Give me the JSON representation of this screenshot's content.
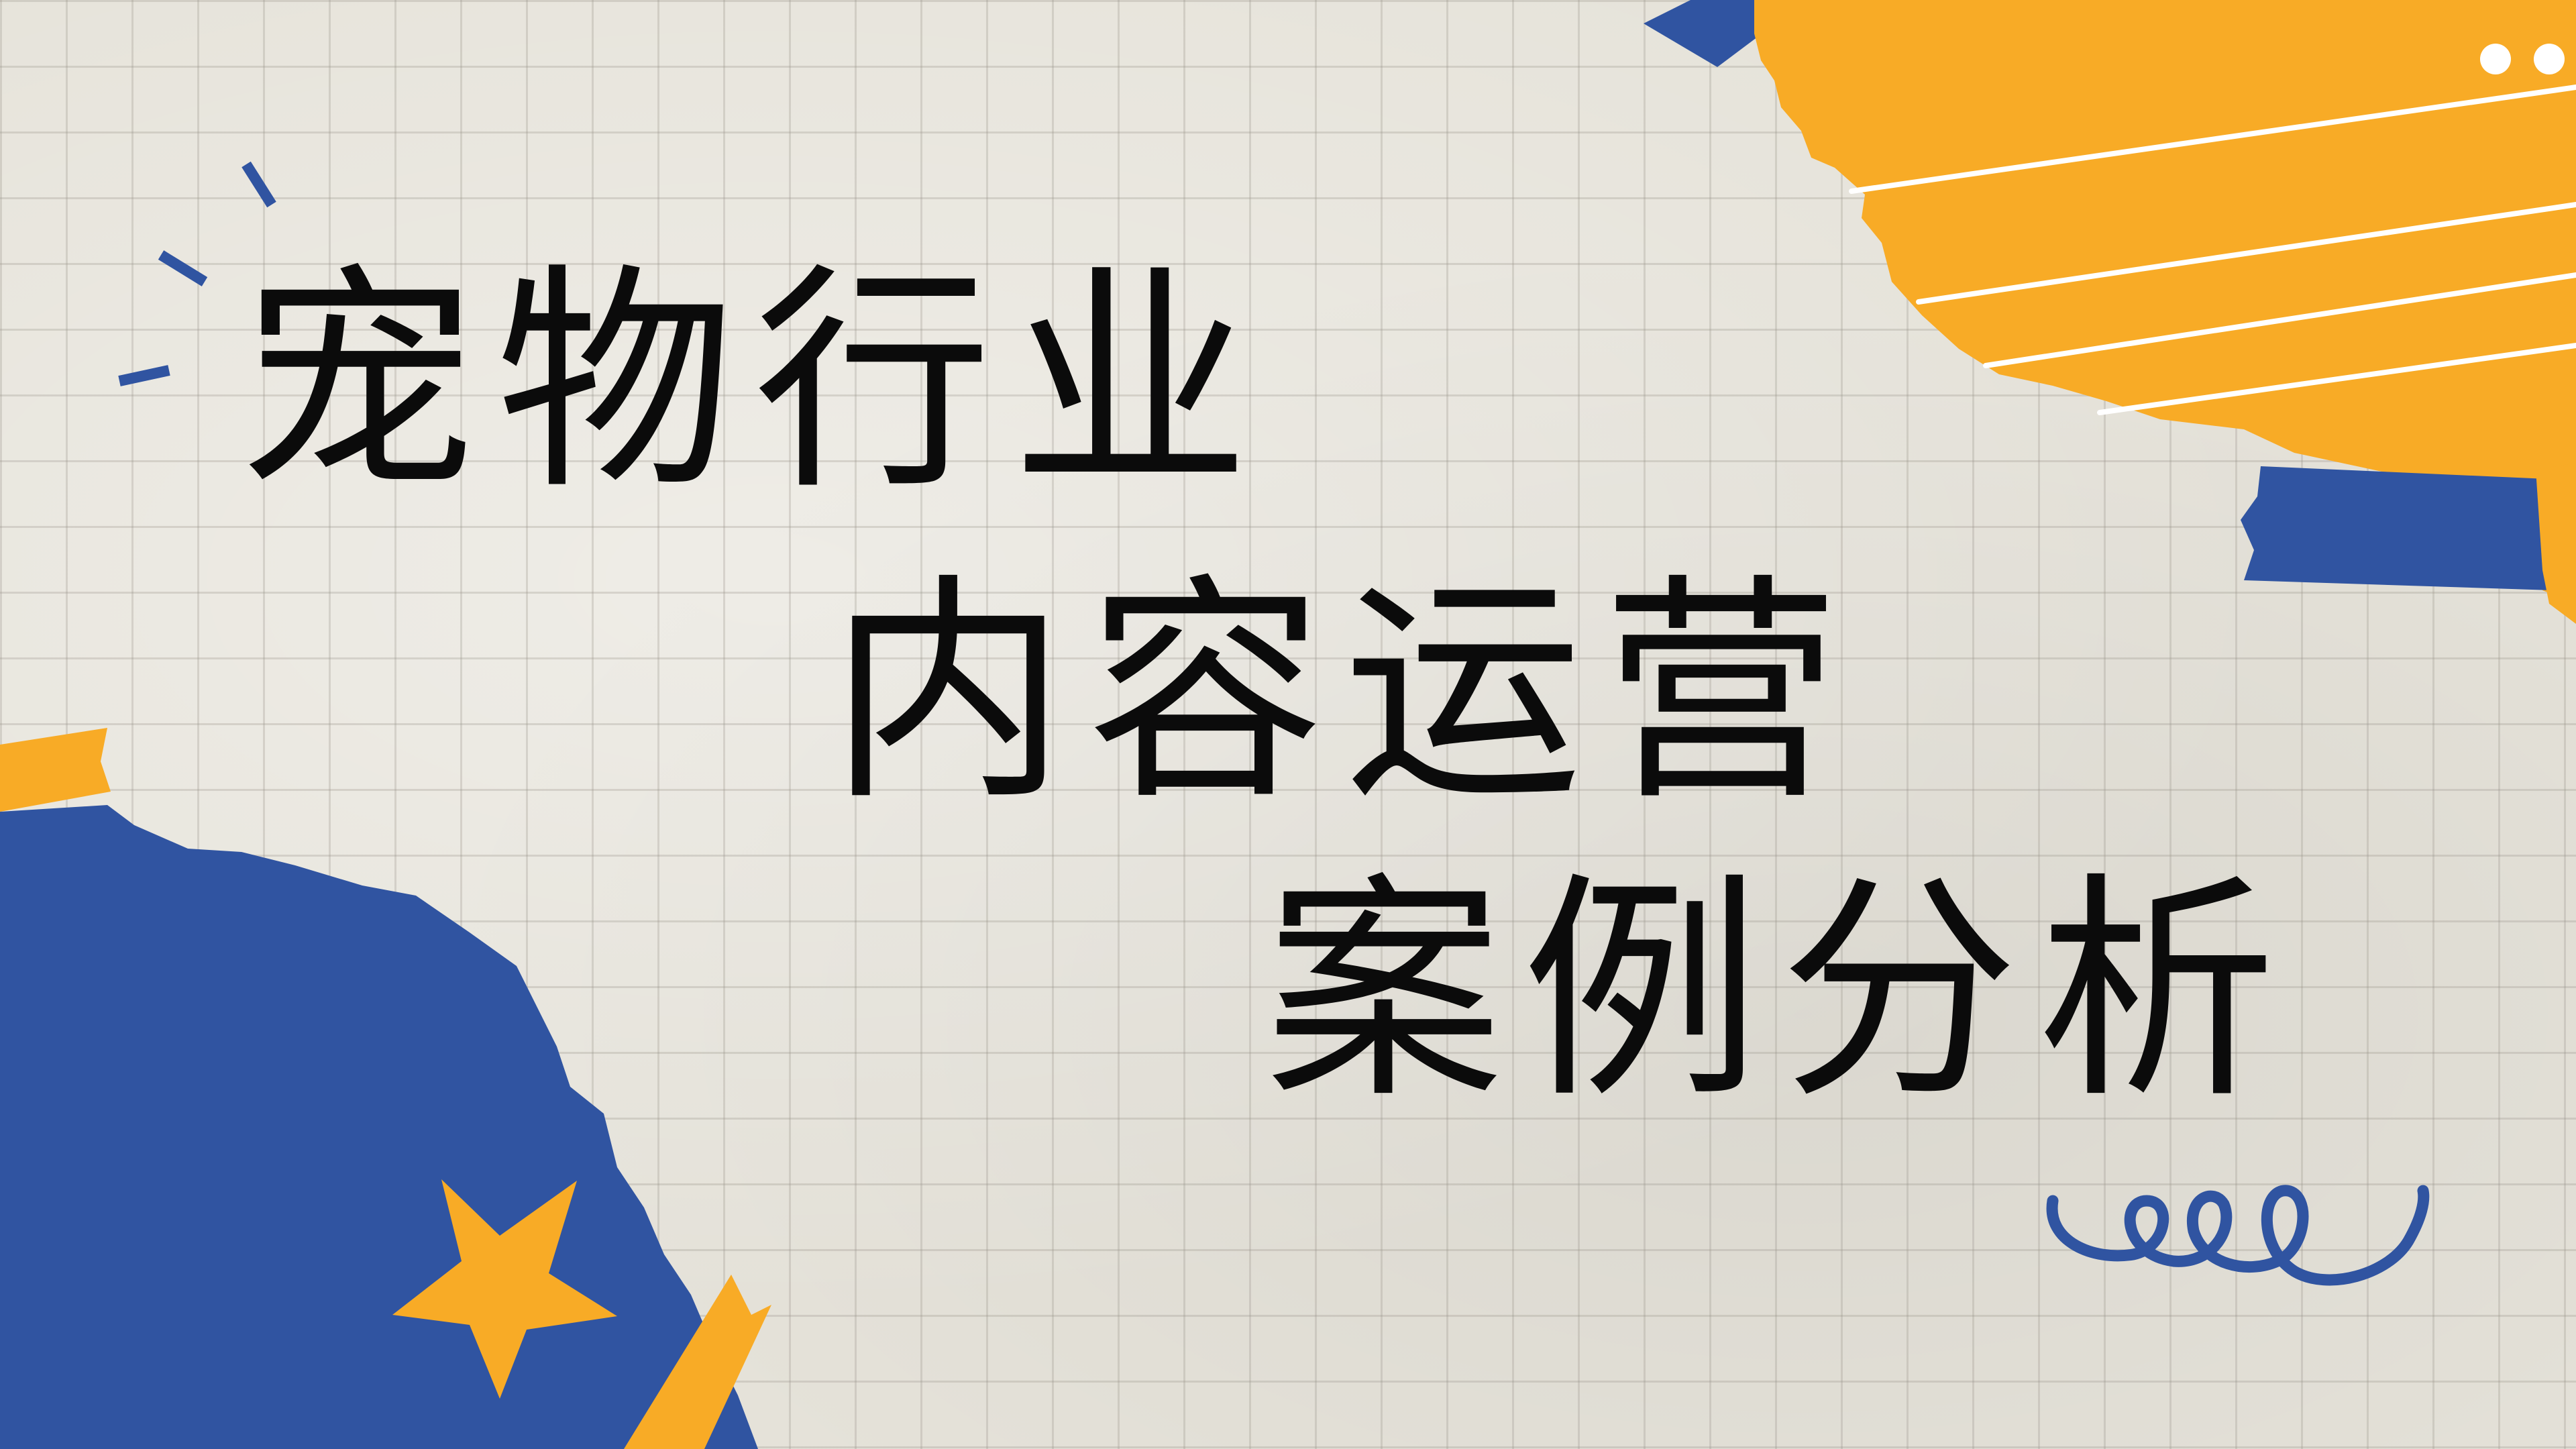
{
  "title": {
    "line1": "宠物行业",
    "line2": "内容运营",
    "line3": "案例分析"
  },
  "colors": {
    "background": "#e6e3da",
    "grid": "#b7b2a7",
    "text": "#0b0b0b",
    "orange": "#f8ab26",
    "blue": "#3054a1",
    "white": "#ffffff"
  },
  "decorations": {
    "icons": [
      "star-icon",
      "spiral-squiggle-icon",
      "sparkle-accent-icon",
      "white-dots-icon"
    ]
  }
}
